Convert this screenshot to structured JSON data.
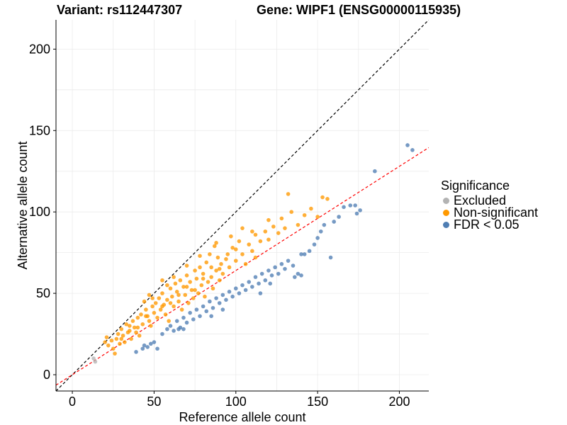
{
  "chart_data": {
    "type": "scatter",
    "title_left": "Variant: rs112447307",
    "title_right": "Gene: WIPF1 (ENSG00000115935)",
    "xlabel": "Reference allele count",
    "ylabel": "Alternative allele count",
    "xlim": [
      -10,
      218
    ],
    "ylim": [
      -10,
      218
    ],
    "x_ticks": [
      0,
      50,
      100,
      150,
      200
    ],
    "y_ticks": [
      0,
      50,
      100,
      150,
      200
    ],
    "grid": true,
    "reference_lines": [
      {
        "name": "identity",
        "slope": 1.0,
        "intercept": 0,
        "style": "dashed",
        "color": "#000000"
      },
      {
        "name": "fit",
        "slope": 0.64,
        "intercept": 0,
        "style": "dashed",
        "color": "#ff0000"
      }
    ],
    "legend": {
      "title": "Significance",
      "position": "right",
      "entries": [
        {
          "label": "Excluded",
          "color": "#b3b3b3"
        },
        {
          "label": "Non-significant",
          "color": "#ff9900"
        },
        {
          "label": "FDR < 0.05",
          "color": "#4f7eb3"
        }
      ]
    },
    "series": [
      {
        "name": "Excluded",
        "color": "#b3b3b3",
        "points": [
          [
            14,
            8
          ],
          [
            13,
            10
          ]
        ]
      },
      {
        "name": "Non-significant",
        "color": "#ff9900",
        "points": [
          [
            20,
            20
          ],
          [
            21,
            23
          ],
          [
            22,
            18
          ],
          [
            24,
            21
          ],
          [
            25,
            16
          ],
          [
            26,
            13
          ],
          [
            27,
            22
          ],
          [
            28,
            25
          ],
          [
            29,
            19
          ],
          [
            30,
            28
          ],
          [
            31,
            24
          ],
          [
            32,
            20
          ],
          [
            33,
            31
          ],
          [
            34,
            26
          ],
          [
            35,
            30
          ],
          [
            36,
            22
          ],
          [
            37,
            33
          ],
          [
            38,
            29
          ],
          [
            39,
            26
          ],
          [
            40,
            35
          ],
          [
            41,
            24
          ],
          [
            42,
            37
          ],
          [
            43,
            31
          ],
          [
            44,
            45
          ],
          [
            45,
            40
          ],
          [
            46,
            36
          ],
          [
            47,
            33
          ],
          [
            48,
            30
          ],
          [
            49,
            42
          ],
          [
            50,
            38
          ],
          [
            51,
            44
          ],
          [
            52,
            35
          ],
          [
            53,
            47
          ],
          [
            54,
            40
          ],
          [
            55,
            50
          ],
          [
            56,
            43
          ],
          [
            57,
            37
          ],
          [
            58,
            46
          ],
          [
            59,
            33
          ],
          [
            60,
            53
          ],
          [
            61,
            48
          ],
          [
            62,
            42
          ],
          [
            63,
            56
          ],
          [
            64,
            51
          ],
          [
            65,
            45
          ],
          [
            66,
            58
          ],
          [
            67,
            40
          ],
          [
            68,
            54
          ],
          [
            69,
            49
          ],
          [
            70,
            61
          ],
          [
            71,
            44
          ],
          [
            72,
            57
          ],
          [
            73,
            52
          ],
          [
            74,
            47
          ],
          [
            75,
            64
          ],
          [
            76,
            59
          ],
          [
            77,
            50
          ],
          [
            78,
            66
          ],
          [
            79,
            55
          ],
          [
            80,
            62
          ],
          [
            81,
            48
          ],
          [
            82,
            69
          ],
          [
            83,
            57
          ],
          [
            84,
            74
          ],
          [
            85,
            60
          ],
          [
            86,
            53
          ],
          [
            87,
            79
          ],
          [
            88,
            64
          ],
          [
            89,
            72
          ],
          [
            90,
            58
          ],
          [
            91,
            68
          ],
          [
            92,
            62
          ],
          [
            94,
            71
          ],
          [
            96,
            66
          ],
          [
            98,
            78
          ],
          [
            100,
            70
          ],
          [
            102,
            82
          ],
          [
            104,
            74
          ],
          [
            106,
            68
          ],
          [
            108,
            80
          ],
          [
            110,
            76
          ],
          [
            112,
            86
          ],
          [
            115,
            82
          ],
          [
            118,
            88
          ],
          [
            120,
            83
          ],
          [
            123,
            91
          ],
          [
            126,
            87
          ],
          [
            128,
            96
          ],
          [
            130,
            90
          ],
          [
            134,
            100
          ],
          [
            138,
            92
          ],
          [
            142,
            98
          ],
          [
            146,
            102
          ],
          [
            150,
            97
          ],
          [
            153,
            109
          ],
          [
            156,
            108
          ],
          [
            132,
            111
          ],
          [
            120,
            95
          ],
          [
            112,
            72
          ],
          [
            95,
            74
          ],
          [
            85,
            66
          ],
          [
            75,
            52
          ],
          [
            65,
            49
          ],
          [
            55,
            42
          ],
          [
            45,
            36
          ],
          [
            35,
            27
          ],
          [
            30,
            22
          ],
          [
            40,
            29
          ],
          [
            60,
            44
          ],
          [
            70,
            54
          ],
          [
            80,
            59
          ],
          [
            90,
            65
          ],
          [
            100,
            77
          ],
          [
            110,
            88
          ],
          [
            47,
            49
          ],
          [
            55,
            58
          ],
          [
            62,
            60
          ],
          [
            70,
            67
          ],
          [
            78,
            73
          ],
          [
            88,
            81
          ],
          [
            97,
            85
          ],
          [
            104,
            90
          ],
          [
            49,
            47
          ],
          [
            58,
            55
          ]
        ]
      },
      {
        "name": "FDR < 0.05",
        "color": "#4f7eb3",
        "points": [
          [
            39,
            14
          ],
          [
            43,
            16
          ],
          [
            44,
            18
          ],
          [
            46,
            17
          ],
          [
            48,
            19
          ],
          [
            50,
            20
          ],
          [
            52,
            16
          ],
          [
            55,
            25
          ],
          [
            58,
            28
          ],
          [
            60,
            30
          ],
          [
            62,
            27
          ],
          [
            64,
            33
          ],
          [
            66,
            29
          ],
          [
            68,
            35
          ],
          [
            70,
            32
          ],
          [
            72,
            38
          ],
          [
            74,
            34
          ],
          [
            76,
            40
          ],
          [
            78,
            36
          ],
          [
            80,
            42
          ],
          [
            82,
            39
          ],
          [
            84,
            45
          ],
          [
            86,
            41
          ],
          [
            88,
            47
          ],
          [
            90,
            44
          ],
          [
            92,
            49
          ],
          [
            94,
            46
          ],
          [
            96,
            51
          ],
          [
            98,
            48
          ],
          [
            100,
            53
          ],
          [
            102,
            50
          ],
          [
            104,
            55
          ],
          [
            106,
            52
          ],
          [
            108,
            57
          ],
          [
            110,
            54
          ],
          [
            112,
            60
          ],
          [
            114,
            56
          ],
          [
            116,
            62
          ],
          [
            118,
            58
          ],
          [
            120,
            64
          ],
          [
            122,
            61
          ],
          [
            124,
            66
          ],
          [
            126,
            62
          ],
          [
            128,
            68
          ],
          [
            130,
            65
          ],
          [
            132,
            70
          ],
          [
            135,
            67
          ],
          [
            138,
            62
          ],
          [
            140,
            74
          ],
          [
            142,
            74
          ],
          [
            145,
            76
          ],
          [
            148,
            80
          ],
          [
            150,
            84
          ],
          [
            152,
            88
          ],
          [
            154,
            92
          ],
          [
            158,
            72
          ],
          [
            160,
            94
          ],
          [
            163,
            97
          ],
          [
            166,
            103
          ],
          [
            170,
            104
          ],
          [
            173,
            104
          ],
          [
            174,
            99
          ],
          [
            176,
            101
          ],
          [
            185,
            125
          ],
          [
            205,
            141
          ],
          [
            208,
            138
          ],
          [
            65,
            28
          ],
          [
            68,
            28
          ],
          [
            85,
            36
          ],
          [
            92,
            40
          ],
          [
            115,
            50
          ],
          [
            121,
            56
          ],
          [
            136,
            60
          ],
          [
            140,
            61
          ]
        ]
      }
    ]
  }
}
